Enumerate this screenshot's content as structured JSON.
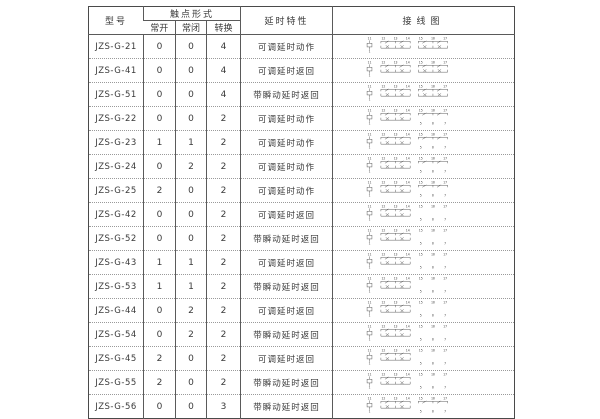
{
  "colors": {
    "background": "#ffffff",
    "frame_border": "#4a4a4a",
    "grid_line": "#5a5a5a",
    "dotted_line": "#9a9a9a",
    "text": "#3a3a3a"
  },
  "table": {
    "header": {
      "model": "型号",
      "contact_form": "触点形式",
      "contact_no": "常开",
      "contact_nc": "常闭",
      "contact_co": "转换",
      "delay": "延时特性",
      "wiring": "接线图"
    },
    "rows": [
      {
        "model": "JZS-G-21",
        "no": "0",
        "nc": "0",
        "co": "4",
        "delay": "可调延时动作",
        "diagram": {
          "variant": "double",
          "coil_top": "11",
          "coil_bottom": "1",
          "group1": [
            "12",
            "13",
            "14"
          ],
          "group2": [
            "15",
            "16",
            "17"
          ],
          "bottom": [
            "5",
            "6",
            "7"
          ]
        }
      },
      {
        "model": "JZS-G-41",
        "no": "0",
        "nc": "0",
        "co": "4",
        "delay": "可调延时返回",
        "diagram": {
          "variant": "double",
          "coil_top": "11",
          "coil_bottom": "1",
          "group1": [
            "12",
            "13",
            "14"
          ],
          "group2": [
            "15",
            "16",
            "17"
          ],
          "bottom": [
            "5",
            "6",
            "7"
          ]
        }
      },
      {
        "model": "JZS-G-51",
        "no": "0",
        "nc": "0",
        "co": "4",
        "delay": "带瞬动延时返回",
        "diagram": {
          "variant": "double",
          "coil_top": "11",
          "coil_bottom": "1",
          "group1": [
            "12",
            "13",
            "14"
          ],
          "group2": [
            "15",
            "16",
            "17"
          ],
          "bottom": [
            "5",
            "6",
            "7"
          ]
        }
      },
      {
        "model": "JZS-G-22",
        "no": "0",
        "nc": "0",
        "co": "2",
        "delay": "可调延时动作",
        "diagram": {
          "variant": "mixed",
          "coil_top": "11",
          "coil_bottom": "1",
          "group1": [
            "12",
            "13",
            "14"
          ],
          "group2": [
            "15",
            "16",
            "17"
          ],
          "bottom": [
            "5",
            "6",
            "7"
          ]
        }
      },
      {
        "model": "JZS-G-23",
        "no": "1",
        "nc": "1",
        "co": "2",
        "delay": "可调延时动作",
        "diagram": {
          "variant": "mixed",
          "coil_top": "11",
          "coil_bottom": "1",
          "group1": [
            "12",
            "13",
            "14"
          ],
          "group2": [
            "15",
            "16",
            "17"
          ],
          "bottom": [
            "5",
            "6",
            "7"
          ]
        }
      },
      {
        "model": "JZS-G-24",
        "no": "0",
        "nc": "2",
        "co": "2",
        "delay": "可调延时动作",
        "diagram": {
          "variant": "mixed",
          "coil_top": "11",
          "coil_bottom": "1",
          "group1": [
            "12",
            "13",
            "14"
          ],
          "group2": [
            "15",
            "16",
            "17"
          ],
          "bottom": [
            "5",
            "6",
            "7"
          ]
        }
      },
      {
        "model": "JZS-G-25",
        "no": "2",
        "nc": "0",
        "co": "2",
        "delay": "可调延时动作",
        "diagram": {
          "variant": "mixed",
          "coil_top": "11",
          "coil_bottom": "1",
          "group1": [
            "12",
            "13",
            "14"
          ],
          "group2": [
            "15",
            "16",
            "17"
          ],
          "bottom": [
            "5",
            "6",
            "7"
          ]
        }
      },
      {
        "model": "JZS-G-42",
        "no": "0",
        "nc": "0",
        "co": "2",
        "delay": "可调延时返回",
        "diagram": {
          "variant": "single",
          "coil_top": "11",
          "coil_bottom": "1",
          "group1": [
            "12",
            "13",
            "14"
          ],
          "group2": [
            "15",
            "16",
            "17"
          ],
          "bottom": [
            "5",
            "6",
            "7"
          ]
        }
      },
      {
        "model": "JZS-G-52",
        "no": "0",
        "nc": "0",
        "co": "2",
        "delay": "带瞬动延时返回",
        "diagram": {
          "variant": "single",
          "coil_top": "11",
          "coil_bottom": "1",
          "group1": [
            "12",
            "13",
            "14"
          ],
          "group2": [
            "15",
            "16",
            "17"
          ],
          "bottom": [
            "5",
            "6",
            "7"
          ]
        }
      },
      {
        "model": "JZS-G-43",
        "no": "1",
        "nc": "1",
        "co": "2",
        "delay": "可调延时返回",
        "diagram": {
          "variant": "single",
          "coil_top": "11",
          "coil_bottom": "1",
          "group1": [
            "12",
            "13",
            "14"
          ],
          "group2": [
            "15",
            "16",
            "17"
          ],
          "bottom": [
            "5",
            "6",
            "7"
          ]
        }
      },
      {
        "model": "JZS-G-53",
        "no": "1",
        "nc": "1",
        "co": "2",
        "delay": "带瞬动延时返回",
        "diagram": {
          "variant": "single",
          "coil_top": "11",
          "coil_bottom": "1",
          "group1": [
            "12",
            "13",
            "14"
          ],
          "group2": [
            "15",
            "16",
            "17"
          ],
          "bottom": [
            "5",
            "6",
            "7"
          ]
        }
      },
      {
        "model": "JZS-G-44",
        "no": "0",
        "nc": "2",
        "co": "2",
        "delay": "可调延时返回",
        "diagram": {
          "variant": "single",
          "coil_top": "11",
          "coil_bottom": "1",
          "group1": [
            "12",
            "13",
            "14"
          ],
          "group2": [
            "15",
            "16",
            "17"
          ],
          "bottom": [
            "5",
            "6",
            "7"
          ]
        }
      },
      {
        "model": "JZS-G-54",
        "no": "0",
        "nc": "2",
        "co": "2",
        "delay": "带瞬动延时返回",
        "diagram": {
          "variant": "single",
          "coil_top": "11",
          "coil_bottom": "1",
          "group1": [
            "12",
            "13",
            "14"
          ],
          "group2": [
            "15",
            "16",
            "17"
          ],
          "bottom": [
            "5",
            "6",
            "7"
          ]
        }
      },
      {
        "model": "JZS-G-45",
        "no": "2",
        "nc": "0",
        "co": "2",
        "delay": "可调延时返回",
        "diagram": {
          "variant": "single",
          "coil_top": "11",
          "coil_bottom": "1",
          "group1": [
            "12",
            "13",
            "14"
          ],
          "group2": [
            "15",
            "16",
            "17"
          ],
          "bottom": [
            "5",
            "6",
            "7"
          ]
        }
      },
      {
        "model": "JZS-G-55",
        "no": "2",
        "nc": "0",
        "co": "2",
        "delay": "带瞬动延时返回",
        "diagram": {
          "variant": "single",
          "coil_top": "11",
          "coil_bottom": "1",
          "group1": [
            "12",
            "13",
            "14"
          ],
          "group2": [
            "15",
            "16",
            "17"
          ],
          "bottom": [
            "5",
            "6",
            "7"
          ]
        }
      },
      {
        "model": "JZS-G-56",
        "no": "0",
        "nc": "0",
        "co": "3",
        "delay": "带瞬动延时返回",
        "diagram": {
          "variant": "mixed",
          "coil_top": "11",
          "coil_bottom": "1",
          "group1": [
            "12",
            "13",
            "14"
          ],
          "group2": [
            "15",
            "16",
            "17"
          ],
          "bottom": [
            "5",
            "6",
            "7"
          ]
        }
      }
    ]
  }
}
